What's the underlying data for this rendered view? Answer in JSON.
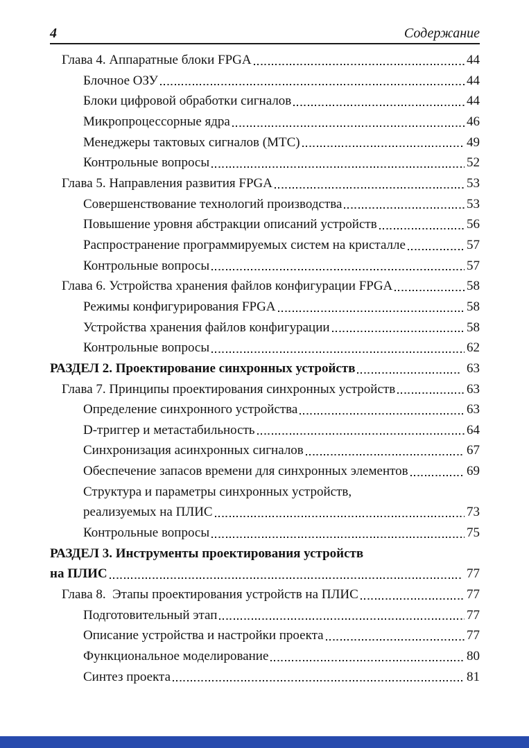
{
  "header": {
    "page_number": "4",
    "title": "Содержание"
  },
  "footer": {
    "bar_color": "#274aad"
  },
  "toc": {
    "entries": [
      {
        "level": "chapter",
        "text": "Глава 4. Аппаратные блоки FPGA",
        "page": "44"
      },
      {
        "level": "sub",
        "text": "Блочное ОЗУ",
        "page": "44"
      },
      {
        "level": "sub",
        "text": "Блоки цифровой обработки сигналов",
        "page": "44"
      },
      {
        "level": "sub",
        "text": "Микропроцессорные ядра",
        "page": "46"
      },
      {
        "level": "sub",
        "text": "Менеджеры тактовых сигналов (МТС)",
        "page": "49"
      },
      {
        "level": "sub",
        "text": "Контрольные вопросы",
        "page": "52"
      },
      {
        "level": "chapter",
        "text": "Глава 5. Направления развития FPGA",
        "page": "53"
      },
      {
        "level": "sub",
        "text": "Совершенствование технологий производства",
        "page": "53"
      },
      {
        "level": "sub",
        "text": "Повышение уровня абстракции описаний устройств",
        "page": "56"
      },
      {
        "level": "sub",
        "text": "Распространение программируемых систем на кристалле",
        "page": "57"
      },
      {
        "level": "sub",
        "text": "Контрольные вопросы",
        "page": "57"
      },
      {
        "level": "chapter",
        "text": "Глава 6. Устройства хранения файлов конфигурации FPGA",
        "page": "58"
      },
      {
        "level": "sub",
        "text": "Режимы конфигурирования FPGA",
        "page": "58"
      },
      {
        "level": "sub",
        "text": "Устройства хранения файлов конфигурации",
        "page": "58"
      },
      {
        "level": "sub",
        "text": "Контрольные вопросы",
        "page": "62"
      },
      {
        "level": "section",
        "text": "РАЗДЕЛ 2. Проектирование синхронных устройств",
        "page": "63"
      },
      {
        "level": "chapter",
        "text": "Глава 7. Принципы проектирования синхронных устройств",
        "page": "63"
      },
      {
        "level": "sub",
        "text": "Определение синхронного устройства",
        "page": "63"
      },
      {
        "level": "sub",
        "text": "D-триггер и метастабильность",
        "page": "64"
      },
      {
        "level": "sub",
        "text": "Синхронизация асинхронных сигналов",
        "page": "67"
      },
      {
        "level": "sub",
        "text": "Обеспечение запасов времени для синхронных элементов",
        "page": "69"
      },
      {
        "level": "sub",
        "pre_line": "Структура и параметры синхронных устройств,",
        "text": "реализуемых на ПЛИС",
        "page": "73"
      },
      {
        "level": "sub",
        "text": "Контрольные вопросы",
        "page": "75"
      },
      {
        "level": "section",
        "pre_line": "РАЗДЕЛ 3. Инструменты проектирования устройств",
        "text": "на ПЛИС",
        "page": "77"
      },
      {
        "level": "chapter",
        "text": "Глава 8.  Этапы проектирования устройств на ПЛИС",
        "page": "77"
      },
      {
        "level": "sub",
        "text": "Подготовительный этап",
        "page": "77"
      },
      {
        "level": "sub",
        "text": "Описание устройства и настройки проекта",
        "page": "77"
      },
      {
        "level": "sub",
        "text": "Функциональное моделирование",
        "page": "80"
      },
      {
        "level": "sub",
        "text": "Синтез проекта",
        "page": "81"
      }
    ]
  }
}
